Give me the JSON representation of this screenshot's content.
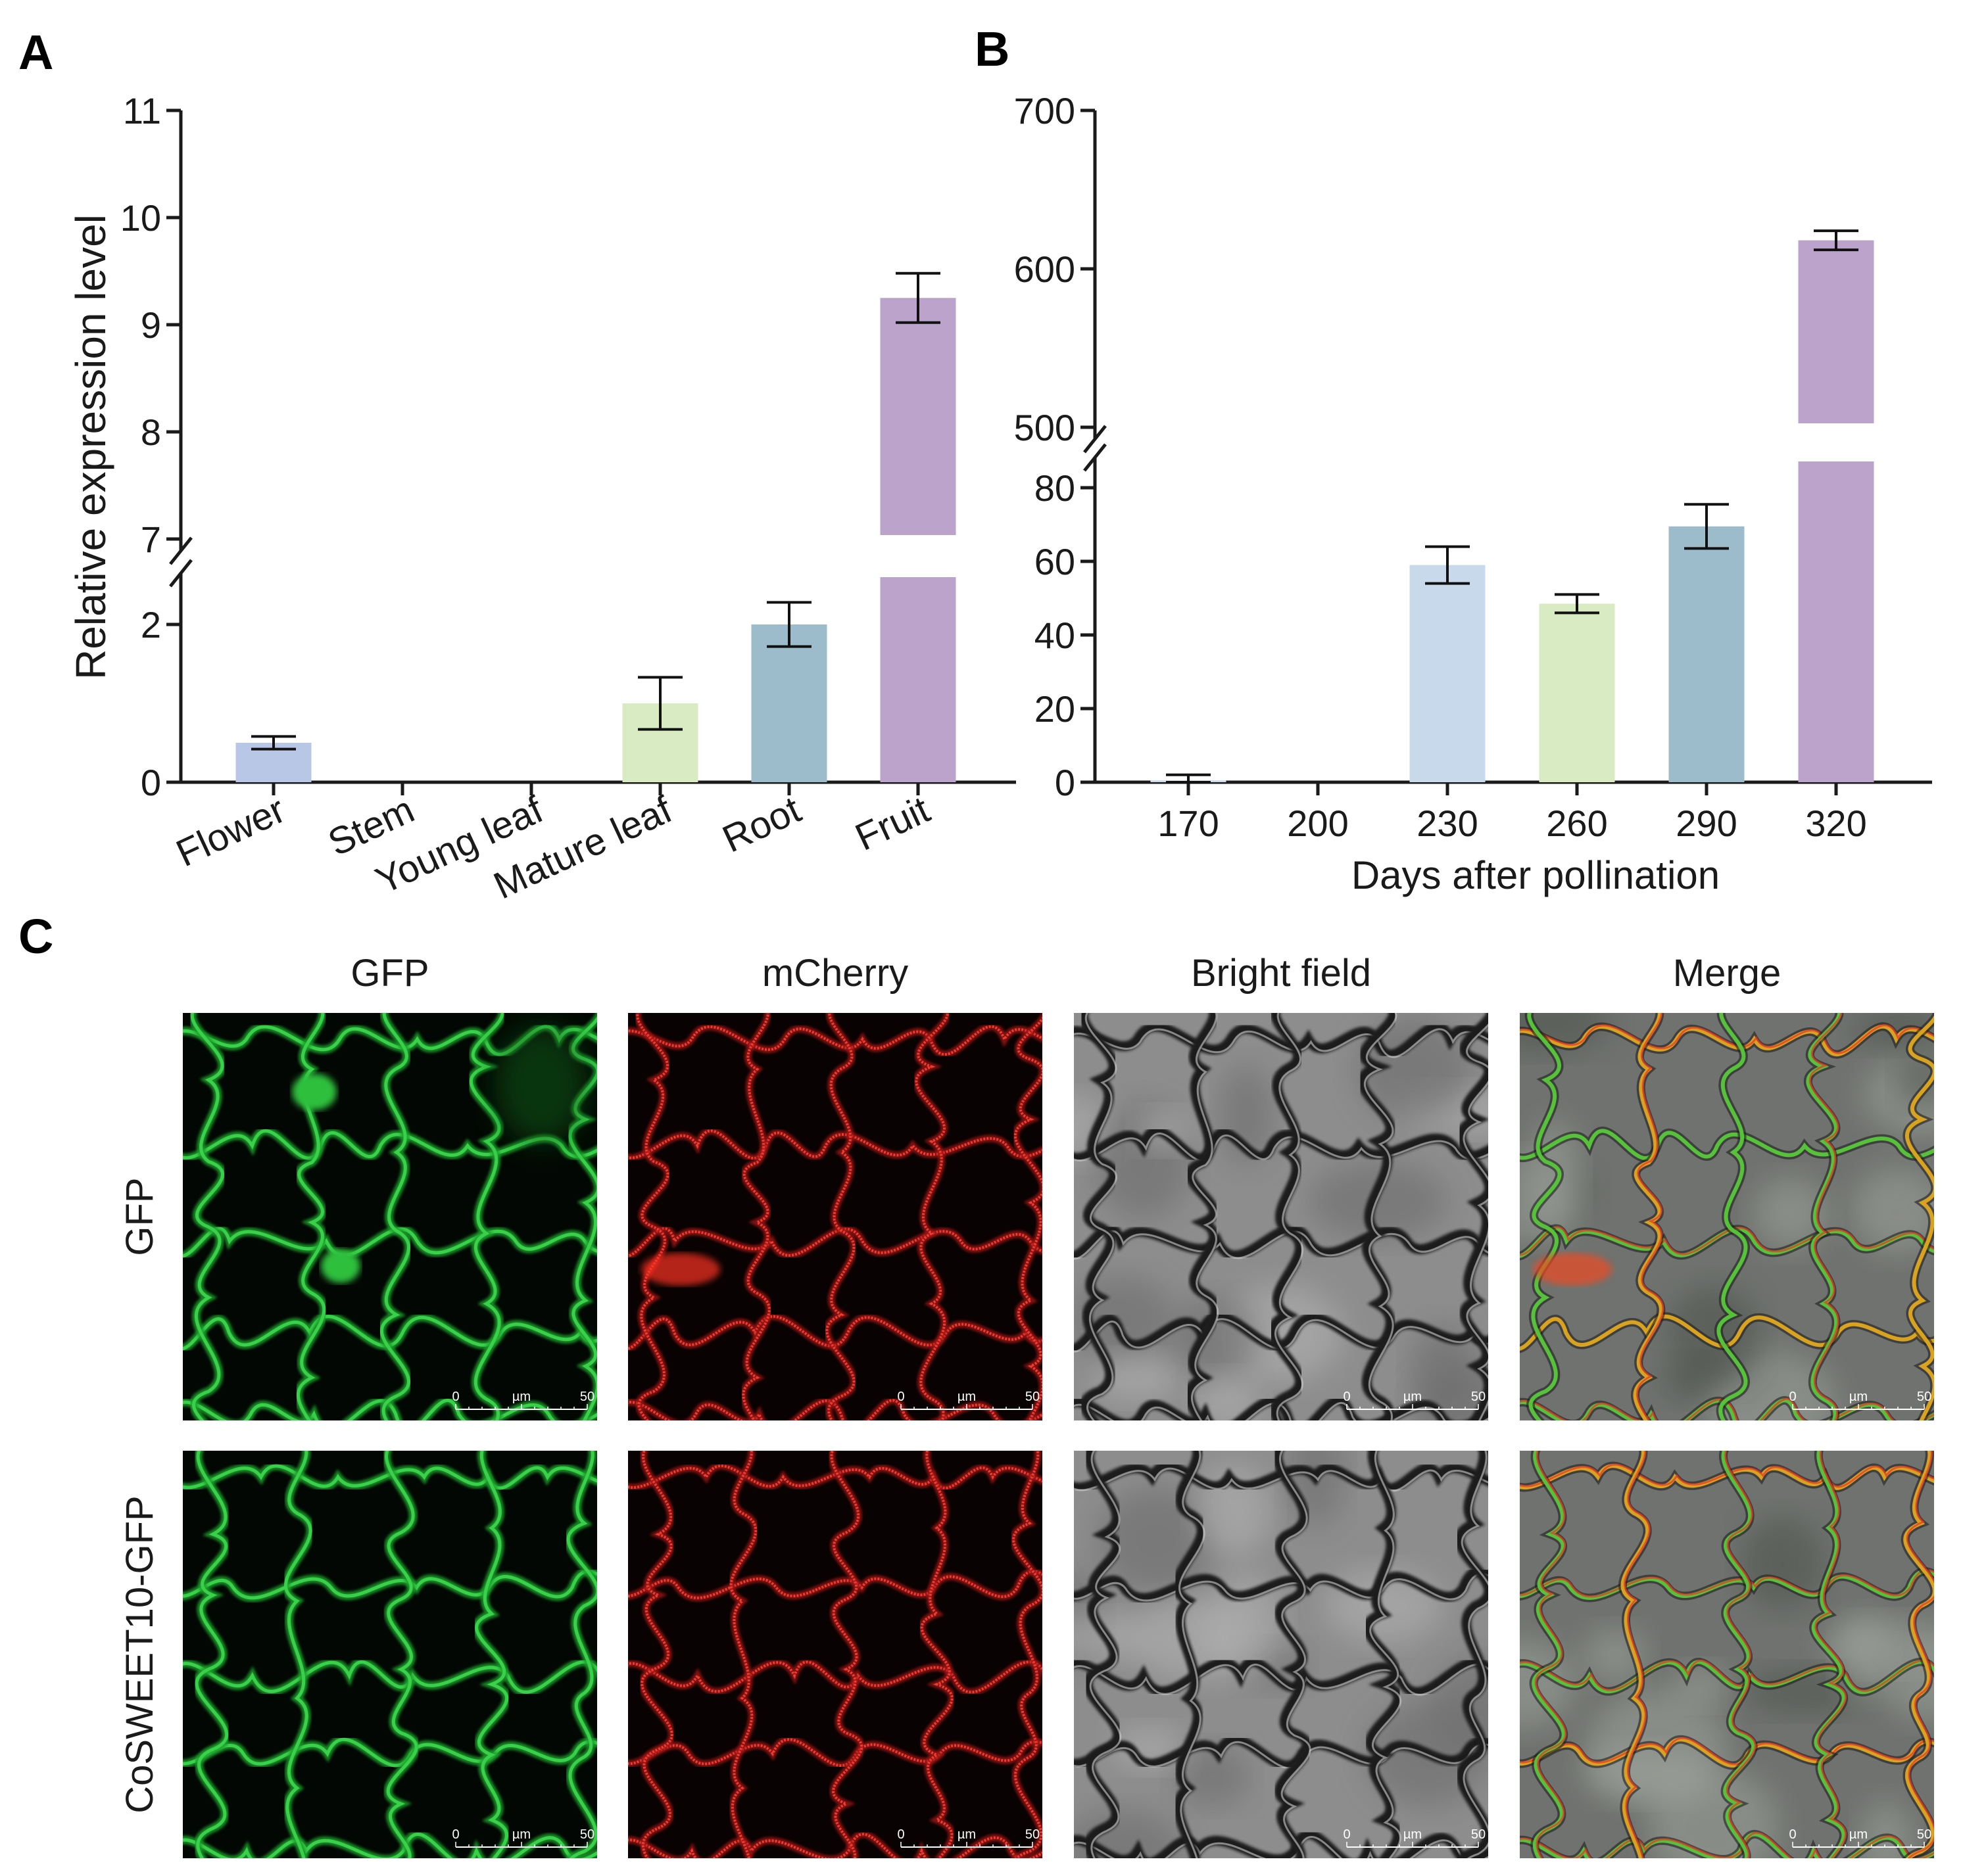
{
  "panels": {
    "a": "A",
    "b": "B",
    "c": "C"
  },
  "chart_data": [
    {
      "panel": "A",
      "type": "bar",
      "ylabel": "Relative expression level",
      "xlabel": "",
      "categories": [
        "Flower",
        "Stem",
        "Young leaf",
        "Mature leaf",
        "Root",
        "Fruit"
      ],
      "values": [
        0.5,
        0,
        0,
        1.0,
        2.0,
        9.25
      ],
      "errors": [
        0.08,
        0,
        0,
        0.33,
        0.28,
        0.23
      ],
      "colors": [
        "#b9c7e6",
        "#ffffff",
        "#ffffff",
        "#d8ebc2",
        "#9cbccb",
        "#bba3cc"
      ],
      "y_axis_break": true,
      "ylim_lower": [
        0,
        2.5
      ],
      "ylim_upper": [
        7,
        11
      ],
      "yticks_lower": [
        0,
        2
      ],
      "yticks_upper": [
        7,
        8,
        9,
        10,
        11
      ],
      "grid": false
    },
    {
      "panel": "B",
      "type": "bar",
      "ylabel": "",
      "xlabel": "Days after  pollination",
      "categories": [
        "170",
        "200",
        "230",
        "260",
        "290",
        "320"
      ],
      "values": [
        0.5,
        0,
        59,
        48.5,
        69.5,
        618
      ],
      "errors": [
        1.5,
        0,
        5,
        2.5,
        6,
        6
      ],
      "colors": [
        "#c8d9ec",
        "#ffffff",
        "#c8d9ec",
        "#d8ebc2",
        "#9cbccb",
        "#bba3cc"
      ],
      "y_axis_break": true,
      "ylim_lower": [
        0,
        85
      ],
      "ylim_upper": [
        500,
        700
      ],
      "yticks_lower": [
        0,
        20,
        40,
        60,
        80
      ],
      "yticks_upper": [
        500,
        600,
        700
      ],
      "grid": false
    }
  ],
  "micrographs": {
    "columns": [
      "GFP",
      "mCherry",
      "Bright field",
      "Merge"
    ],
    "rows": [
      "GFP",
      "CoSWEET10-GFP"
    ],
    "scale_bar": {
      "start": "0",
      "unit": "µm",
      "end": "50"
    }
  }
}
